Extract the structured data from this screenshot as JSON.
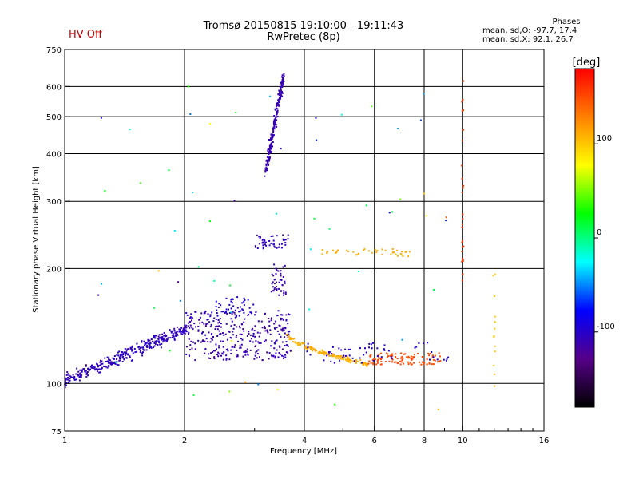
{
  "header": {
    "hv_status": "HV Off",
    "title_line1": "Tromsø 20150815 19:10:00—19:11:43",
    "title_line2": "RwPretec (8p)",
    "phase_title": "Phases",
    "phase_o": "mean, sd,O: -97.7, 17.4",
    "phase_x": "mean, sd,X:  92.1, 26.7"
  },
  "colors": {
    "hv_status": "#c00000",
    "trace_main": "#1a1aff"
  },
  "chart_data": {
    "type": "scatter",
    "title": "Tromsø 20150815 19:10:00—19:11:43",
    "subtitle": "RwPretec (8p)",
    "xlabel": "Frequency [MHz]",
    "ylabel": "Stationary phase Virtual Height [km]",
    "x_scale": "log",
    "y_scale": "log",
    "xlim": [
      1,
      16
    ],
    "ylim": [
      75,
      750
    ],
    "x_ticks": [
      1,
      2,
      4,
      6,
      8,
      10,
      16
    ],
    "x_tick_labels": [
      "1",
      "2",
      "4",
      "6",
      "8",
      "10",
      "16"
    ],
    "x_gridlines": [
      2,
      4,
      6,
      8,
      10
    ],
    "y_ticks": [
      75,
      100,
      200,
      300,
      400,
      500,
      600,
      750
    ],
    "y_tick_labels": [
      "75",
      "100",
      "200",
      "300",
      "400",
      "500",
      "600",
      "750"
    ],
    "y_gridlines": [
      100,
      200,
      300,
      400,
      500,
      600
    ],
    "grid": true,
    "colorbar": {
      "label": "[deg]",
      "range": [
        -180,
        180
      ],
      "ticks": [
        100,
        0,
        -100
      ],
      "tick_labels": [
        "100",
        "0",
        "-100"
      ],
      "stops": [
        "#ff0000",
        "#ff8000",
        "#ffff00",
        "#00ff00",
        "#00ffff",
        "#0000ff",
        "#550088",
        "#000000"
      ]
    },
    "clusters": [
      {
        "name_hint": "E-F1 trace",
        "f": [
          1.0,
          2.05
        ],
        "h": [
          98,
          140
        ],
        "n": 360,
        "phase": -105,
        "spread": 12,
        "trend": "rising"
      },
      {
        "name_hint": "F1 trace",
        "f": [
          2.0,
          3.7
        ],
        "h": [
          115,
          155
        ],
        "n": 340,
        "phase": -110,
        "spread": 14,
        "trend": "flat"
      },
      {
        "name_hint": "F1 upper",
        "f": [
          2.4,
          3.0
        ],
        "h": [
          150,
          170
        ],
        "n": 40,
        "phase": -95,
        "spread": 6,
        "trend": "flat"
      },
      {
        "name_hint": "F2 cusp",
        "f": [
          3.2,
          3.55
        ],
        "h": [
          360,
          640
        ],
        "n": 200,
        "phase": -110,
        "spread": 5,
        "trend": "steep"
      },
      {
        "name_hint": "F layer 230 km",
        "f": [
          3.0,
          3.65
        ],
        "h": [
          225,
          245
        ],
        "n": 50,
        "phase": -105,
        "spread": 3,
        "trend": "flat"
      },
      {
        "name_hint": "Es 190-200 km",
        "f": [
          3.3,
          3.6
        ],
        "h": [
          170,
          205
        ],
        "n": 45,
        "phase": -110,
        "spread": 6,
        "trend": "flat"
      },
      {
        "name_hint": "X trace mid",
        "f": [
          3.6,
          5.8
        ],
        "h": [
          112,
          135
        ],
        "n": 160,
        "phase": 110,
        "spread": 4,
        "trend": "falling"
      },
      {
        "name_hint": "X trace high",
        "f": [
          5.8,
          8.8
        ],
        "h": [
          112,
          120
        ],
        "n": 110,
        "phase": 150,
        "spread": 2,
        "trend": "flat"
      },
      {
        "name_hint": "O trace high",
        "f": [
          4.0,
          9.2
        ],
        "h": [
          113,
          128
        ],
        "n": 60,
        "phase": -100,
        "spread": 3,
        "trend": "flat"
      },
      {
        "name_hint": "X 220 km",
        "f": [
          4.4,
          7.4
        ],
        "h": [
          215,
          225
        ],
        "n": 45,
        "phase": 110,
        "spread": 2,
        "trend": "flat"
      },
      {
        "name_hint": "vertical 10 MHz",
        "f": [
          9.95,
          10.05
        ],
        "h": [
          180,
          650
        ],
        "n": 30,
        "phase": 160,
        "spread": 2,
        "trend": "vertical"
      },
      {
        "name_hint": "vertical 12 MHz",
        "f": [
          11.9,
          12.1
        ],
        "h": [
          95,
          200
        ],
        "n": 14,
        "phase": 100,
        "spread": 2,
        "trend": "vertical"
      },
      {
        "name_hint": "scatter",
        "f": [
          1.2,
          9.5
        ],
        "h": [
          85,
          600
        ],
        "n": 60,
        "phase": 0,
        "spread": 180,
        "trend": "random"
      }
    ]
  }
}
